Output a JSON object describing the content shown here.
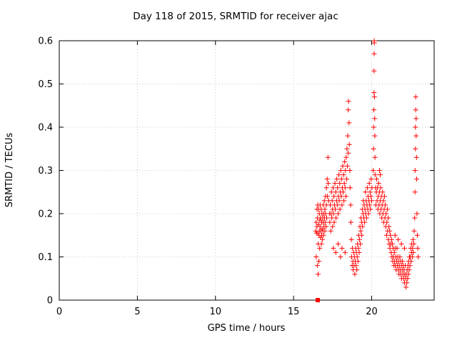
{
  "window_title": "Day 118 of 2015, SRMTID for receiver ajac",
  "chart_data": {
    "type": "scatter",
    "title": "Day 118 of 2015, SRMTID for receiver ajac",
    "xlabel": "GPS time / hours",
    "ylabel": "SRMTID / TECUs",
    "xlim": [
      0,
      24
    ],
    "ylim": [
      0,
      0.6
    ],
    "xticks": [
      0,
      5,
      10,
      15,
      20
    ],
    "xtick_labels": [
      "0",
      "5",
      "10",
      "15",
      "20"
    ],
    "yticks": [
      0,
      0.1,
      0.2,
      0.3,
      0.4,
      0.5,
      0.6
    ],
    "ytick_labels": [
      "0",
      "0.1",
      "0.2",
      "0.3",
      "0.4",
      "0.5",
      "0.6"
    ],
    "grid": true,
    "legend": "none",
    "marker": "plus",
    "marker_color": "#ff0000",
    "grid_color": "#c8c8c8",
    "border_color": "#000000",
    "points": [
      [
        16.42,
        0.16
      ],
      [
        16.45,
        0.18
      ],
      [
        16.45,
        0.1
      ],
      [
        16.47,
        0.155
      ],
      [
        16.5,
        0.21
      ],
      [
        16.5,
        0.17
      ],
      [
        16.52,
        0.08
      ],
      [
        16.53,
        0.19
      ],
      [
        16.55,
        0.22
      ],
      [
        16.55,
        0.155
      ],
      [
        16.57,
        0.06
      ],
      [
        16.58,
        0.13
      ],
      [
        16.6,
        0.175
      ],
      [
        16.6,
        0.21
      ],
      [
        16.62,
        0.09
      ],
      [
        16.63,
        0.15
      ],
      [
        16.65,
        0.2
      ],
      [
        16.65,
        0.16
      ],
      [
        16.67,
        0.12
      ],
      [
        16.68,
        0.185
      ],
      [
        16.7,
        0.22
      ],
      [
        16.7,
        0.17
      ],
      [
        16.72,
        0.145
      ],
      [
        16.73,
        0.19
      ],
      [
        16.75,
        0.16
      ],
      [
        16.77,
        0.21
      ],
      [
        16.78,
        0.13
      ],
      [
        16.8,
        0.18
      ],
      [
        16.8,
        0.15
      ],
      [
        16.82,
        0.2
      ],
      [
        16.83,
        0.165
      ],
      [
        16.85,
        0.14
      ],
      [
        16.87,
        0.19
      ],
      [
        16.88,
        0.16
      ],
      [
        16.9,
        0.22
      ],
      [
        16.9,
        0.18
      ],
      [
        16.92,
        0.15
      ],
      [
        16.93,
        0.2
      ],
      [
        16.95,
        0.17
      ],
      [
        16.97,
        0.23
      ],
      [
        16.98,
        0.19
      ],
      [
        17.0,
        0.16
      ],
      [
        17.0,
        0.21
      ],
      [
        17.02,
        0.18
      ],
      [
        17.05,
        0.24
      ],
      [
        17.05,
        0.2
      ],
      [
        17.08,
        0.17
      ],
      [
        17.1,
        0.26
      ],
      [
        17.1,
        0.22
      ],
      [
        17.12,
        0.19
      ],
      [
        17.15,
        0.28
      ],
      [
        17.17,
        0.24
      ],
      [
        17.2,
        0.33
      ],
      [
        17.22,
        0.27
      ],
      [
        17.25,
        0.23
      ],
      [
        17.3,
        0.2
      ],
      [
        17.32,
        0.18
      ],
      [
        17.35,
        0.22
      ],
      [
        17.38,
        0.16
      ],
      [
        17.4,
        0.2
      ],
      [
        17.42,
        0.25
      ],
      [
        17.45,
        0.19
      ],
      [
        17.47,
        0.23
      ],
      [
        17.5,
        0.17
      ],
      [
        17.5,
        0.21
      ],
      [
        17.53,
        0.26
      ],
      [
        17.55,
        0.12
      ],
      [
        17.55,
        0.2
      ],
      [
        17.58,
        0.24
      ],
      [
        17.6,
        0.18
      ],
      [
        17.62,
        0.22
      ],
      [
        17.65,
        0.27
      ],
      [
        17.67,
        0.21
      ],
      [
        17.7,
        0.11
      ],
      [
        17.7,
        0.25
      ],
      [
        17.72,
        0.19
      ],
      [
        17.75,
        0.23
      ],
      [
        17.77,
        0.28
      ],
      [
        17.8,
        0.22
      ],
      [
        17.82,
        0.26
      ],
      [
        17.85,
        0.13
      ],
      [
        17.85,
        0.2
      ],
      [
        17.87,
        0.24
      ],
      [
        17.9,
        0.29
      ],
      [
        17.92,
        0.23
      ],
      [
        17.95,
        0.27
      ],
      [
        17.97,
        0.21
      ],
      [
        18.0,
        0.1
      ],
      [
        18.0,
        0.25
      ],
      [
        18.02,
        0.3
      ],
      [
        18.05,
        0.24
      ],
      [
        18.07,
        0.28
      ],
      [
        18.1,
        0.12
      ],
      [
        18.1,
        0.22
      ],
      [
        18.12,
        0.26
      ],
      [
        18.15,
        0.31
      ],
      [
        18.17,
        0.25
      ],
      [
        18.2,
        0.29
      ],
      [
        18.22,
        0.23
      ],
      [
        18.25,
        0.27
      ],
      [
        18.27,
        0.32
      ],
      [
        18.3,
        0.11
      ],
      [
        18.3,
        0.26
      ],
      [
        18.32,
        0.3
      ],
      [
        18.35,
        0.24
      ],
      [
        18.37,
        0.33
      ],
      [
        18.4,
        0.28
      ],
      [
        18.42,
        0.35
      ],
      [
        18.45,
        0.31
      ],
      [
        18.47,
        0.38
      ],
      [
        18.5,
        0.44
      ],
      [
        18.5,
        0.34
      ],
      [
        18.52,
        0.46
      ],
      [
        18.55,
        0.41
      ],
      [
        18.57,
        0.36
      ],
      [
        18.6,
        0.3
      ],
      [
        18.62,
        0.26
      ],
      [
        18.65,
        0.22
      ],
      [
        18.67,
        0.18
      ],
      [
        18.7,
        0.14
      ],
      [
        18.72,
        0.1
      ],
      [
        18.75,
        0.08
      ],
      [
        18.77,
        0.12
      ],
      [
        18.8,
        0.09
      ],
      [
        18.82,
        0.07
      ],
      [
        18.85,
        0.11
      ],
      [
        18.87,
        0.08
      ],
      [
        18.9,
        0.1
      ],
      [
        18.92,
        0.06
      ],
      [
        18.95,
        0.09
      ],
      [
        18.97,
        0.12
      ],
      [
        19.0,
        0.08
      ],
      [
        19.02,
        0.11
      ],
      [
        19.05,
        0.07
      ],
      [
        19.07,
        0.1
      ],
      [
        19.1,
        0.13
      ],
      [
        19.12,
        0.09
      ],
      [
        19.15,
        0.12
      ],
      [
        19.17,
        0.15
      ],
      [
        19.2,
        0.11
      ],
      [
        19.22,
        0.14
      ],
      [
        19.25,
        0.17
      ],
      [
        19.27,
        0.13
      ],
      [
        19.3,
        0.16
      ],
      [
        19.32,
        0.19
      ],
      [
        19.35,
        0.15
      ],
      [
        19.37,
        0.18
      ],
      [
        19.4,
        0.21
      ],
      [
        19.42,
        0.17
      ],
      [
        19.45,
        0.2
      ],
      [
        19.47,
        0.23
      ],
      [
        19.5,
        0.19
      ],
      [
        19.52,
        0.22
      ],
      [
        19.55,
        0.18
      ],
      [
        19.57,
        0.21
      ],
      [
        19.6,
        0.25
      ],
      [
        19.62,
        0.2
      ],
      [
        19.65,
        0.23
      ],
      [
        19.67,
        0.19
      ],
      [
        19.7,
        0.22
      ],
      [
        19.72,
        0.26
      ],
      [
        19.75,
        0.21
      ],
      [
        19.77,
        0.24
      ],
      [
        19.8,
        0.2
      ],
      [
        19.82,
        0.23
      ],
      [
        19.85,
        0.27
      ],
      [
        19.87,
        0.22
      ],
      [
        19.9,
        0.25
      ],
      [
        19.92,
        0.21
      ],
      [
        19.95,
        0.24
      ],
      [
        19.97,
        0.28
      ],
      [
        20.0,
        0.23
      ],
      [
        20.02,
        0.26
      ],
      [
        20.1,
        0.3
      ],
      [
        20.12,
        0.35
      ],
      [
        20.13,
        0.4
      ],
      [
        20.14,
        0.44
      ],
      [
        20.15,
        0.48
      ],
      [
        20.15,
        0.53
      ],
      [
        20.16,
        0.57
      ],
      [
        20.16,
        0.6
      ],
      [
        20.17,
        0.595
      ],
      [
        20.18,
        0.47
      ],
      [
        20.19,
        0.42
      ],
      [
        20.2,
        0.38
      ],
      [
        20.21,
        0.33
      ],
      [
        20.22,
        0.29
      ],
      [
        20.25,
        0.26
      ],
      [
        20.27,
        0.22
      ],
      [
        20.3,
        0.25
      ],
      [
        20.32,
        0.28
      ],
      [
        20.35,
        0.23
      ],
      [
        20.37,
        0.26
      ],
      [
        20.4,
        0.21
      ],
      [
        20.42,
        0.24
      ],
      [
        20.45,
        0.27
      ],
      [
        20.47,
        0.22
      ],
      [
        20.5,
        0.3
      ],
      [
        20.5,
        0.25
      ],
      [
        20.52,
        0.2
      ],
      [
        20.55,
        0.29
      ],
      [
        20.55,
        0.23
      ],
      [
        20.57,
        0.26
      ],
      [
        20.6,
        0.21
      ],
      [
        20.62,
        0.24
      ],
      [
        20.65,
        0.19
      ],
      [
        20.67,
        0.22
      ],
      [
        20.7,
        0.25
      ],
      [
        20.72,
        0.2
      ],
      [
        20.75,
        0.23
      ],
      [
        20.77,
        0.18
      ],
      [
        20.8,
        0.21
      ],
      [
        20.82,
        0.24
      ],
      [
        20.85,
        0.19
      ],
      [
        20.87,
        0.22
      ],
      [
        20.9,
        0.17
      ],
      [
        20.92,
        0.2
      ],
      [
        20.95,
        0.15
      ],
      [
        20.97,
        0.18
      ],
      [
        21.0,
        0.21
      ],
      [
        21.02,
        0.16
      ],
      [
        21.05,
        0.19
      ],
      [
        21.07,
        0.14
      ],
      [
        21.1,
        0.17
      ],
      [
        21.12,
        0.13
      ],
      [
        21.15,
        0.16
      ],
      [
        21.17,
        0.12
      ],
      [
        21.2,
        0.15
      ],
      [
        21.22,
        0.13
      ],
      [
        21.25,
        0.11
      ],
      [
        21.27,
        0.14
      ],
      [
        21.3,
        0.1
      ],
      [
        21.32,
        0.13
      ],
      [
        21.35,
        0.09
      ],
      [
        21.37,
        0.12
      ],
      [
        21.4,
        0.1
      ],
      [
        21.42,
        0.08
      ],
      [
        21.45,
        0.11
      ],
      [
        21.47,
        0.09
      ],
      [
        21.5,
        0.15
      ],
      [
        21.5,
        0.12
      ],
      [
        21.52,
        0.08
      ],
      [
        21.55,
        0.1
      ],
      [
        21.57,
        0.07
      ],
      [
        21.6,
        0.09
      ],
      [
        21.62,
        0.12
      ],
      [
        21.65,
        0.08
      ],
      [
        21.67,
        0.1
      ],
      [
        21.7,
        0.14
      ],
      [
        21.7,
        0.07
      ],
      [
        21.72,
        0.09
      ],
      [
        21.75,
        0.06
      ],
      [
        21.77,
        0.08
      ],
      [
        21.8,
        0.1
      ],
      [
        21.82,
        0.07
      ],
      [
        21.85,
        0.09
      ],
      [
        21.87,
        0.06
      ],
      [
        21.9,
        0.13
      ],
      [
        21.9,
        0.08
      ],
      [
        21.92,
        0.05
      ],
      [
        21.95,
        0.07
      ],
      [
        21.97,
        0.09
      ],
      [
        22.0,
        0.06
      ],
      [
        22.02,
        0.08
      ],
      [
        22.05,
        0.05
      ],
      [
        22.07,
        0.07
      ],
      [
        22.1,
        0.12
      ],
      [
        22.1,
        0.04
      ],
      [
        22.12,
        0.06
      ],
      [
        22.15,
        0.08
      ],
      [
        22.17,
        0.05
      ],
      [
        22.2,
        0.03
      ],
      [
        22.22,
        0.06
      ],
      [
        22.25,
        0.04
      ],
      [
        22.27,
        0.07
      ],
      [
        22.3,
        0.05
      ],
      [
        22.32,
        0.08
      ],
      [
        22.35,
        0.06
      ],
      [
        22.37,
        0.09
      ],
      [
        22.4,
        0.07
      ],
      [
        22.42,
        0.1
      ],
      [
        22.45,
        0.08
      ],
      [
        22.47,
        0.1
      ],
      [
        22.5,
        0.12
      ],
      [
        22.52,
        0.09
      ],
      [
        22.55,
        0.11
      ],
      [
        22.57,
        0.13
      ],
      [
        22.6,
        0.1
      ],
      [
        22.62,
        0.12
      ],
      [
        22.65,
        0.14
      ],
      [
        22.67,
        0.11
      ],
      [
        22.7,
        0.13
      ],
      [
        22.72,
        0.16
      ],
      [
        22.75,
        0.19
      ],
      [
        22.77,
        0.25
      ],
      [
        22.78,
        0.3
      ],
      [
        22.8,
        0.35
      ],
      [
        22.8,
        0.4
      ],
      [
        22.82,
        0.44
      ],
      [
        22.82,
        0.47
      ],
      [
        22.85,
        0.42
      ],
      [
        22.85,
        0.38
      ],
      [
        22.87,
        0.33
      ],
      [
        22.88,
        0.28
      ],
      [
        22.9,
        0.2
      ],
      [
        22.92,
        0.15
      ],
      [
        22.95,
        0.12
      ],
      [
        22.97,
        0.1
      ]
    ],
    "square_points": [
      [
        16.55,
        0.0
      ]
    ]
  }
}
